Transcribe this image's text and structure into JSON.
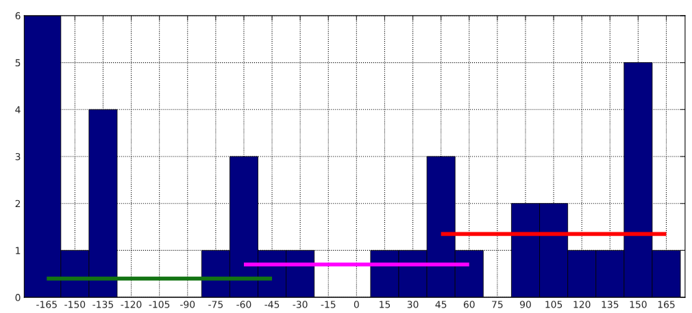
{
  "chart_data": {
    "type": "histogram",
    "bins": [
      -177,
      -157.5,
      -142.5,
      -127.5,
      -82.5,
      -67.5,
      -52.5,
      -37.5,
      -22.5,
      7.5,
      22.5,
      37.5,
      52.5,
      67.5,
      82.5,
      97.5,
      112.5,
      127.5,
      142.5,
      157.5,
      172.5
    ],
    "series": [
      {
        "type": "histogram",
        "color": "#000080",
        "values": [
          6,
          1,
          4,
          0,
          1,
          3,
          1,
          1,
          0,
          1,
          1,
          3,
          1,
          0,
          2,
          2,
          1,
          1,
          5,
          1
        ]
      },
      {
        "type": "line",
        "color": "#137413",
        "x": [
          -165,
          -45
        ],
        "values": [
          0.4,
          0.4
        ]
      },
      {
        "type": "line",
        "color": "#ff00ff",
        "x": [
          -60,
          60
        ],
        "values": [
          0.7,
          0.7
        ]
      },
      {
        "type": "line",
        "color": "#ff0000",
        "x": [
          45,
          165
        ],
        "values": [
          1.35,
          1.35
        ]
      }
    ],
    "xlim": [
      -177,
      175
    ],
    "xticks": [
      -165,
      -150,
      -135,
      -120,
      -105,
      -90,
      -75,
      -60,
      -45,
      -30,
      -15,
      0,
      15,
      30,
      45,
      60,
      75,
      90,
      105,
      120,
      135,
      150,
      165
    ],
    "ylim": [
      0,
      6
    ],
    "yticks": [
      0,
      1,
      2,
      3,
      4,
      5,
      6
    ],
    "grid": true,
    "line_style": "solid",
    "marker": "none"
  }
}
